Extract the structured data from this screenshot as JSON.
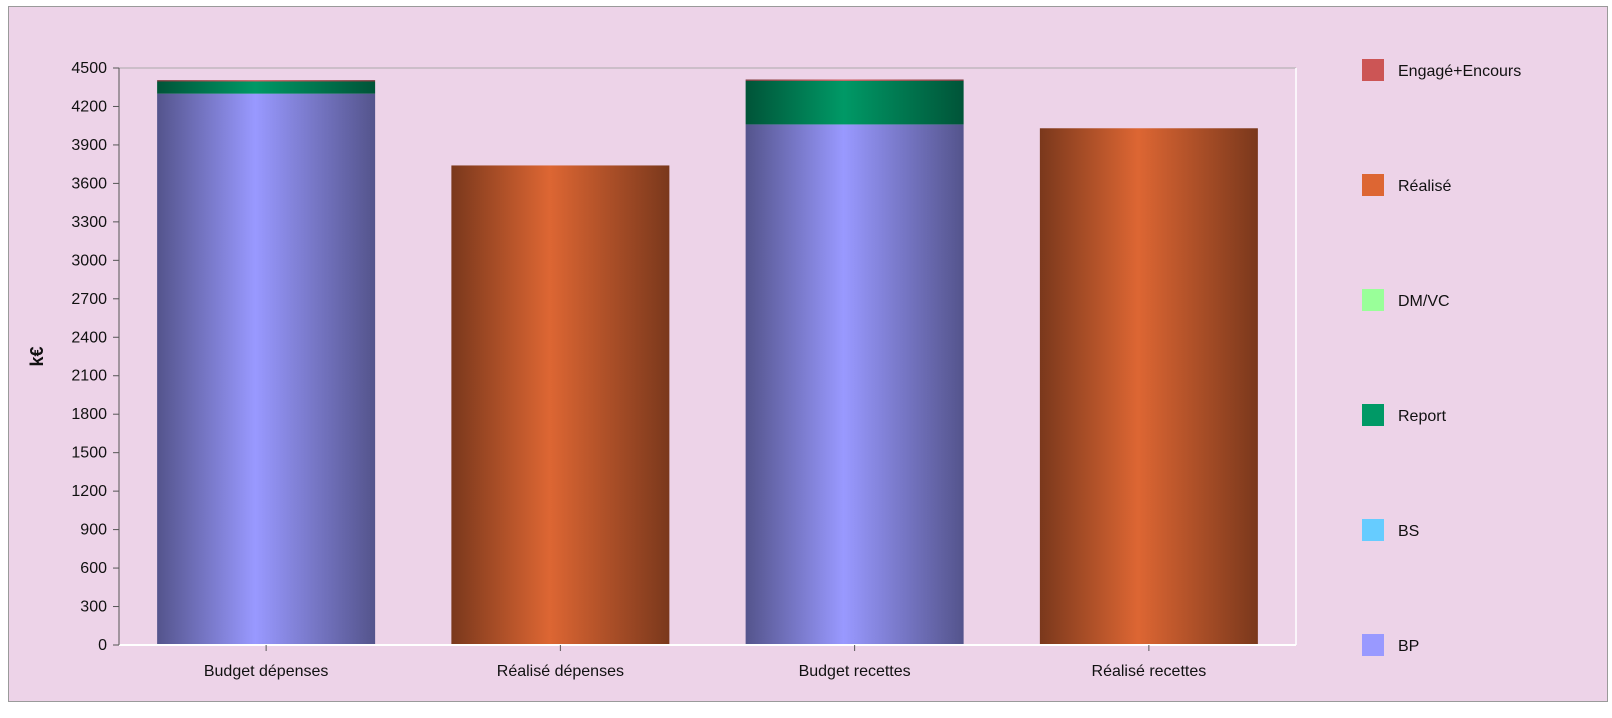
{
  "chart_data": {
    "type": "bar",
    "stacked": true,
    "ylabel": "k€",
    "ylim": [
      0,
      4500
    ],
    "yticks": [
      0,
      300,
      600,
      900,
      1200,
      1500,
      1800,
      2100,
      2400,
      2700,
      3000,
      3300,
      3600,
      3900,
      4200,
      4500
    ],
    "categories": [
      "Budget dépenses",
      "Réalisé dépenses",
      "Budget recettes",
      "Réalisé recettes"
    ],
    "legend_position": "right",
    "series": [
      {
        "name": "BP",
        "color": "#9999ff",
        "values": [
          4300,
          0,
          4060,
          0
        ]
      },
      {
        "name": "BS",
        "color": "#66ccff",
        "values": [
          0,
          0,
          0,
          0
        ]
      },
      {
        "name": "Report",
        "color": "#009966",
        "values": [
          95,
          0,
          340,
          0
        ]
      },
      {
        "name": "DM/VC",
        "color": "#99ff99",
        "values": [
          0,
          0,
          0,
          0
        ]
      },
      {
        "name": "Réalisé",
        "color": "#dd6633",
        "values": [
          0,
          3740,
          0,
          4030
        ]
      },
      {
        "name": "Engagé+Encours",
        "color": "#cc5555",
        "values": [
          10,
          0,
          10,
          0
        ]
      }
    ],
    "legend_order": [
      "Engagé+Encours",
      "Réalisé",
      "DM/VC",
      "Report",
      "BS",
      "BP"
    ]
  }
}
